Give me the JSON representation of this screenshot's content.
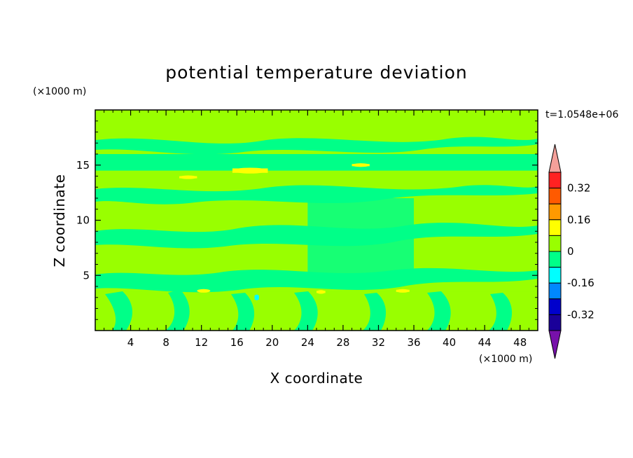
{
  "chart_data": {
    "type": "heatmap",
    "title": "potential temperature deviation",
    "xlabel": "X coordinate",
    "ylabel": "Z coordinate",
    "x_unit": "(×1000 m)",
    "y_unit": "(×1000 m)",
    "time_label": "t=1.0548e+06",
    "xlim": [
      0,
      50
    ],
    "ylim": [
      0,
      20
    ],
    "x_ticks": [
      4,
      8,
      12,
      16,
      20,
      24,
      28,
      32,
      36,
      40,
      44,
      48
    ],
    "y_ticks": [
      5,
      10,
      15
    ],
    "background_level": "0 to 0.08",
    "regions": [
      {
        "level": "0 to 0.08",
        "x": [
          0,
          50
        ],
        "y": [
          16.5,
          20
        ]
      },
      {
        "level": "0 to 0.08",
        "x": [
          0,
          50
        ],
        "y": [
          12,
          14
        ]
      },
      {
        "level": "0 to 0.08",
        "x": [
          0,
          50
        ],
        "y": [
          8,
          10
        ]
      },
      {
        "level": "0 to 0.08",
        "x": [
          0,
          50
        ],
        "y": [
          5.5,
          7
        ]
      },
      {
        "level": "0 to 0.08",
        "x": [
          0,
          50
        ],
        "y": [
          0,
          3.5
        ]
      },
      {
        "level": "-0.08 to 0",
        "x": [
          0,
          50
        ],
        "y": [
          14.5,
          16
        ]
      },
      {
        "level": "-0.08 to 0",
        "x": [
          24,
          36
        ],
        "y": [
          5,
          12
        ]
      },
      {
        "level": "0.08 to 0.16",
        "x": [
          15.5,
          19.5
        ],
        "y": [
          14.3,
          14.7
        ]
      },
      {
        "level": "0.08 to 0.16",
        "x": [
          9.5,
          11.5
        ],
        "y": [
          13.8,
          14.0
        ]
      },
      {
        "level": "0.08 to 0.16",
        "x": [
          29,
          31
        ],
        "y": [
          14.9,
          15.1
        ]
      },
      {
        "level": "0.08 to 0.16",
        "x": [
          11.5,
          13
        ],
        "y": [
          3.5,
          3.7
        ]
      },
      {
        "level": "0.08 to 0.16",
        "x": [
          25,
          26
        ],
        "y": [
          3.4,
          3.6
        ]
      },
      {
        "level": "0.08 to 0.16",
        "x": [
          34,
          35.5
        ],
        "y": [
          3.5,
          3.7
        ]
      },
      {
        "level": "-0.16 to -0.08",
        "x": [
          18,
          18.5
        ],
        "y": [
          2.8,
          3.2
        ]
      }
    ],
    "colorbar": {
      "labels": [
        "0.32",
        "0.16",
        "0",
        "-0.16",
        "-0.32"
      ],
      "label_values": [
        0.32,
        0.16,
        0,
        -0.16,
        -0.32
      ],
      "levels": [
        {
          "from": 0.4,
          "to": 0.48,
          "color": "#f4a09a"
        },
        {
          "from": 0.32,
          "to": 0.4,
          "color": "#ff2222"
        },
        {
          "from": 0.24,
          "to": 0.32,
          "color": "#ff5a00"
        },
        {
          "from": 0.16,
          "to": 0.24,
          "color": "#ff9900"
        },
        {
          "from": 0.08,
          "to": 0.16,
          "color": "#ffff00"
        },
        {
          "from": 0.0,
          "to": 0.08,
          "color": "#99ff00"
        },
        {
          "from": -0.08,
          "to": 0.0,
          "color": "#00ff88"
        },
        {
          "from": -0.16,
          "to": -0.08,
          "color": "#00ffff"
        },
        {
          "from": -0.24,
          "to": -0.16,
          "color": "#0088ff"
        },
        {
          "from": -0.32,
          "to": -0.24,
          "color": "#0000cc"
        },
        {
          "from": -0.4,
          "to": -0.32,
          "color": "#1a0099"
        },
        {
          "from": -0.48,
          "to": -0.4,
          "color": "#7711aa"
        }
      ]
    }
  }
}
